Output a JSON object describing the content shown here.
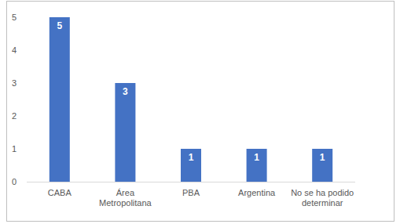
{
  "chart_data": {
    "type": "bar",
    "categories": [
      "CABA",
      "Área Metropolitana",
      "PBA",
      "Argentina",
      "No se ha podido determinar"
    ],
    "values": [
      5,
      3,
      1,
      1,
      1
    ],
    "color": "#4472c4",
    "ylim": [
      0,
      5
    ],
    "yticks": [
      0,
      1,
      2,
      3,
      4,
      5
    ],
    "grid": false,
    "data_labels": true
  }
}
